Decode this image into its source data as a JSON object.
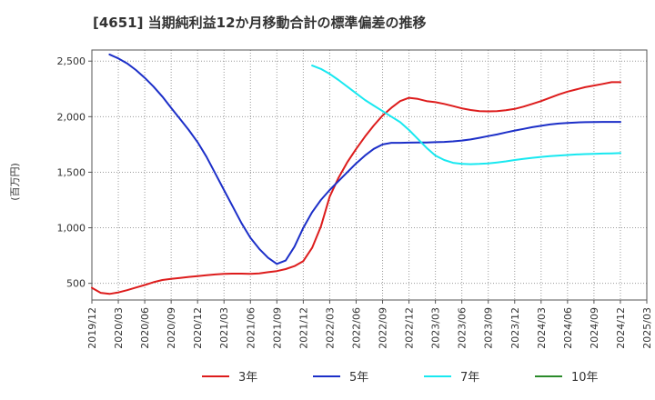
{
  "chart_data": {
    "type": "line",
    "title": "[4651]  当期純利益12か月移動合計の標準偏差の推移",
    "ylabel": "(百万円)",
    "xlabel": "",
    "ylim": [
      350,
      2600
    ],
    "yticks": [
      500,
      1000,
      1500,
      2000,
      2500
    ],
    "ytick_labels": [
      "500",
      "1,000",
      "1,500",
      "2,000",
      "2,500"
    ],
    "xlim": [
      "2019-12",
      "2025-03"
    ],
    "xtick_labels": [
      "2019/12",
      "2020/03",
      "2020/06",
      "2020/09",
      "2020/12",
      "2021/03",
      "2021/06",
      "2021/09",
      "2021/12",
      "2022/03",
      "2022/06",
      "2022/09",
      "2022/12",
      "2023/03",
      "2023/06",
      "2023/09",
      "2023/12",
      "2024/03",
      "2024/06",
      "2024/09",
      "2024/12",
      "2025/03"
    ],
    "grid": true,
    "legend_position": "bottom",
    "series": [
      {
        "name": "3年",
        "color": "#dd1c1c",
        "x": [
          "2019-12",
          "2020-01",
          "2020-02",
          "2020-03",
          "2020-04",
          "2020-05",
          "2020-06",
          "2020-07",
          "2020-08",
          "2020-09",
          "2020-10",
          "2020-11",
          "2020-12",
          "2021-01",
          "2021-02",
          "2021-03",
          "2021-04",
          "2021-05",
          "2021-06",
          "2021-07",
          "2021-08",
          "2021-09",
          "2021-10",
          "2021-11",
          "2021-12",
          "2022-01",
          "2022-02",
          "2022-03",
          "2022-04",
          "2022-05",
          "2022-06",
          "2022-07",
          "2022-08",
          "2022-09",
          "2022-10",
          "2022-11",
          "2022-12",
          "2023-01",
          "2023-02",
          "2023-03",
          "2023-04",
          "2023-05",
          "2023-06",
          "2023-07",
          "2023-08",
          "2023-09",
          "2023-10",
          "2023-11",
          "2023-12",
          "2024-01",
          "2024-02",
          "2024-03",
          "2024-04",
          "2024-05",
          "2024-06",
          "2024-07",
          "2024-08",
          "2024-09",
          "2024-10",
          "2024-11",
          "2024-12"
        ],
        "values": [
          460,
          415,
          405,
          418,
          438,
          462,
          485,
          510,
          530,
          540,
          548,
          558,
          565,
          573,
          580,
          585,
          587,
          587,
          586,
          589,
          600,
          610,
          628,
          655,
          700,
          820,
          1010,
          1280,
          1450,
          1590,
          1710,
          1820,
          1920,
          2010,
          2080,
          2140,
          2170,
          2160,
          2140,
          2130,
          2115,
          2095,
          2075,
          2060,
          2050,
          2048,
          2050,
          2058,
          2070,
          2090,
          2115,
          2140,
          2170,
          2200,
          2225,
          2245,
          2265,
          2280,
          2295,
          2310,
          2310
        ]
      },
      {
        "name": "5年",
        "color": "#1c2fc8",
        "x": [
          "2020-02",
          "2020-03",
          "2020-04",
          "2020-05",
          "2020-06",
          "2020-07",
          "2020-08",
          "2020-09",
          "2020-10",
          "2020-11",
          "2020-12",
          "2021-01",
          "2021-02",
          "2021-03",
          "2021-04",
          "2021-05",
          "2021-06",
          "2021-07",
          "2021-08",
          "2021-09",
          "2021-10",
          "2021-11",
          "2021-12",
          "2022-01",
          "2022-02",
          "2022-03",
          "2022-04",
          "2022-05",
          "2022-06",
          "2022-07",
          "2022-08",
          "2022-09",
          "2022-10",
          "2022-11",
          "2022-12",
          "2023-01",
          "2023-02",
          "2023-03",
          "2023-04",
          "2023-05",
          "2023-06",
          "2023-07",
          "2023-08",
          "2023-09",
          "2023-10",
          "2023-11",
          "2023-12",
          "2024-01",
          "2024-02",
          "2024-03",
          "2024-04",
          "2024-05",
          "2024-06",
          "2024-07",
          "2024-08",
          "2024-09",
          "2024-10",
          "2024-11",
          "2024-12"
        ],
        "values": [
          2560,
          2525,
          2480,
          2420,
          2350,
          2270,
          2180,
          2080,
          1980,
          1880,
          1770,
          1640,
          1490,
          1340,
          1190,
          1040,
          910,
          810,
          730,
          675,
          705,
          830,
          1000,
          1140,
          1250,
          1340,
          1420,
          1500,
          1580,
          1650,
          1710,
          1750,
          1765,
          1765,
          1766,
          1767,
          1768,
          1770,
          1773,
          1778,
          1785,
          1795,
          1810,
          1825,
          1840,
          1858,
          1875,
          1890,
          1905,
          1918,
          1930,
          1938,
          1944,
          1948,
          1950,
          1952,
          1953,
          1953,
          1953
        ]
      },
      {
        "name": "7年",
        "color": "#18e8f0",
        "x": [
          "2022-01",
          "2022-02",
          "2022-03",
          "2022-04",
          "2022-05",
          "2022-06",
          "2022-07",
          "2022-08",
          "2022-09",
          "2022-10",
          "2022-11",
          "2022-12",
          "2023-01",
          "2023-02",
          "2023-03",
          "2023-04",
          "2023-05",
          "2023-06",
          "2023-07",
          "2023-08",
          "2023-09",
          "2023-10",
          "2023-11",
          "2023-12",
          "2024-01",
          "2024-02",
          "2024-03",
          "2024-04",
          "2024-05",
          "2024-06",
          "2024-07",
          "2024-08",
          "2024-09",
          "2024-10",
          "2024-11",
          "2024-12"
        ],
        "values": [
          2460,
          2430,
          2385,
          2330,
          2270,
          2210,
          2150,
          2100,
          2050,
          2000,
          1950,
          1880,
          1800,
          1720,
          1650,
          1610,
          1585,
          1575,
          1572,
          1575,
          1580,
          1588,
          1598,
          1610,
          1620,
          1630,
          1638,
          1645,
          1650,
          1655,
          1660,
          1663,
          1665,
          1668,
          1670,
          1672
        ]
      },
      {
        "name": "10年",
        "color": "#2a8a2a",
        "x": [],
        "values": []
      }
    ]
  }
}
